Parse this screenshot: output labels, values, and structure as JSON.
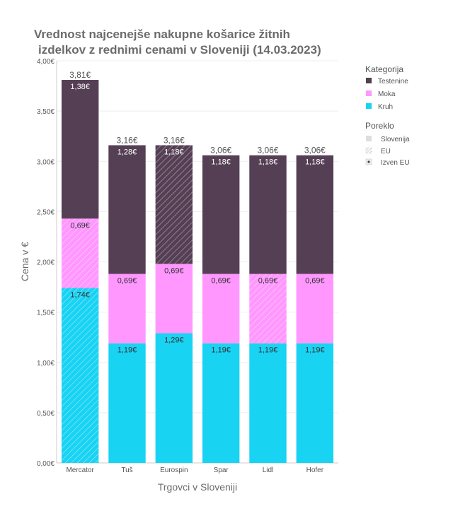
{
  "chart_data": {
    "type": "bar",
    "stacked": true,
    "title_line1": "Vrednost najcenejše nakupne košarice žitnih",
    "title_line2": "izdelkov z rednimi cenami v Sloveniji (14.03.2023)",
    "xlabel": "Trgovci v Sloveniji",
    "ylabel": "Cena v €",
    "ylim": [
      0,
      4
    ],
    "yticks": [
      "0,00€",
      "0,50€",
      "1,00€",
      "1,50€",
      "2,00€",
      "2,50€",
      "3,00€",
      "3,50€",
      "4,00€"
    ],
    "grid": true,
    "categories": [
      "Mercator",
      "Tuš",
      "Eurospin",
      "Spar",
      "Lidl",
      "Hofer"
    ],
    "totals": [
      "3,81€",
      "3,16€",
      "3,16€",
      "3,06€",
      "3,06€",
      "3,06€"
    ],
    "series": [
      {
        "name": "Kruh",
        "color": "#19d3f3",
        "values": [
          1.74,
          1.19,
          1.29,
          1.19,
          1.19,
          1.19
        ],
        "labels": [
          "1,74€",
          "1,19€",
          "1,29€",
          "1,19€",
          "1,19€",
          "1,19€"
        ],
        "origin": [
          "EU",
          "Slovenija",
          "Slovenija",
          "Slovenija",
          "Slovenija",
          "Slovenija"
        ]
      },
      {
        "name": "Moka",
        "color": "#ff97ff",
        "values": [
          0.69,
          0.69,
          0.69,
          0.69,
          0.69,
          0.69
        ],
        "labels": [
          "0,69€",
          "0,69€",
          "0,69€",
          "0,69€",
          "0,69€",
          "0,69€"
        ],
        "origin": [
          "EU",
          "Slovenija",
          "Slovenija",
          "Slovenija",
          "EU",
          "Slovenija"
        ]
      },
      {
        "name": "Testenine",
        "color": "#553f54",
        "values": [
          1.38,
          1.28,
          1.18,
          1.18,
          1.18,
          1.18
        ],
        "labels": [
          "1,38€",
          "1,28€",
          "1,18€",
          "1,18€",
          "1,18€",
          "1,18€"
        ],
        "origin": [
          "Slovenija",
          "Slovenija",
          "EU",
          "Slovenija",
          "Slovenija",
          "Slovenija"
        ]
      }
    ],
    "legend": {
      "position": "right",
      "category_title": "Kategorija",
      "category_items": [
        "Testenine",
        "Moka",
        "Kruh"
      ],
      "origin_title": "Poreklo",
      "origin_items": [
        "Slovenija",
        "EU",
        "Izven EU"
      ]
    }
  }
}
